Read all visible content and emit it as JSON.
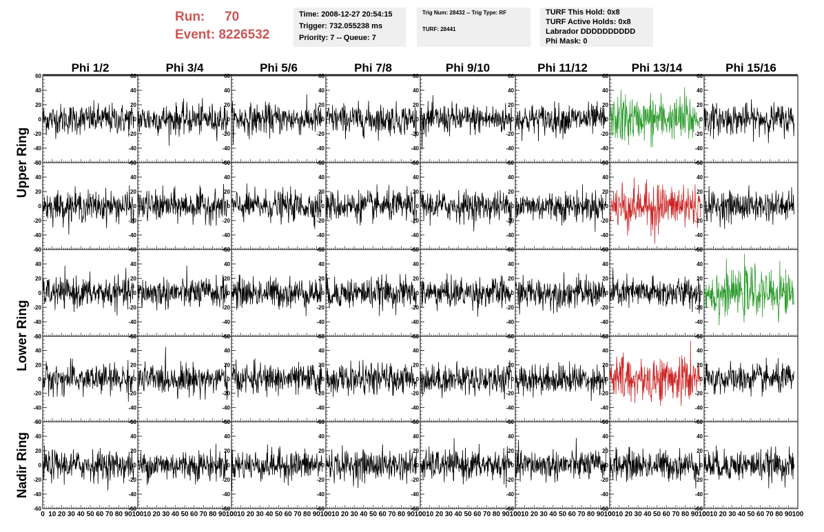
{
  "run_info": {
    "run_label": "Run:",
    "run_value": "70",
    "event_label": "Event:",
    "event_value": "8226532"
  },
  "time_box": {
    "line1": "Time: 2008-12-27 20:54:15",
    "line2": "Trigger: 732.055238 ms",
    "line3": "Priority: 7 -- Queue: 7"
  },
  "trig_box": {
    "line1": "Trig Num: 28432 -- Trig Type: RF",
    "line2": "TURF: 28441"
  },
  "turf_box": {
    "line1": "TURF This Hold: 0x8",
    "line2": "TURF Active Holds: 0x8",
    "line3": "Labrador DDDDDDDDDD",
    "line4": "Phi Mask: 0"
  },
  "chart_data": {
    "type": "line",
    "columns": [
      "Phi 1/2",
      "Phi 3/4",
      "Phi 5/6",
      "Phi 7/8",
      "Phi 9/10",
      "Phi 11/12",
      "Phi 13/14",
      "Phi 15/16"
    ],
    "row_groups": [
      {
        "label": "Upper Ring",
        "rows": [
          0,
          1
        ]
      },
      {
        "label": "Lower Ring",
        "rows": [
          2,
          3
        ]
      },
      {
        "label": "Nadir Ring",
        "rows": [
          4
        ]
      }
    ],
    "xlim": [
      0,
      100
    ],
    "x_ticks": [
      "0",
      "10",
      "20",
      "30",
      "40",
      "50",
      "60",
      "70",
      "80",
      "90",
      "100"
    ],
    "ylim": [
      -60,
      60
    ],
    "y_ticks": [
      "-60",
      "-40",
      "-20",
      "0",
      "20",
      "40",
      "60"
    ],
    "colors": {
      "normal": "#000000",
      "green": "#2a9a2a",
      "red": "#cc2222"
    },
    "highlights": [
      {
        "row": 0,
        "col": 6,
        "color": "green"
      },
      {
        "row": 1,
        "col": 6,
        "color": "red"
      },
      {
        "row": 2,
        "col": 7,
        "color": "green"
      },
      {
        "row": 3,
        "col": 6,
        "color": "red"
      }
    ],
    "series_note_amplitude": {
      "normal": 14,
      "highlight": 20
    }
  }
}
